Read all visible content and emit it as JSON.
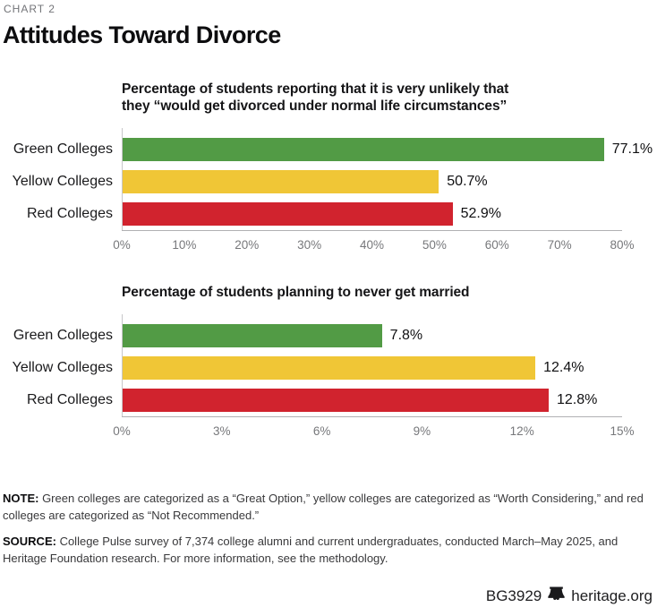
{
  "page": {
    "kicker": "CHART 2",
    "title": "Attitudes Toward Divorce"
  },
  "chart_data": [
    {
      "type": "bar",
      "orientation": "horizontal",
      "title": "Percentage of students reporting that it is very unlikely that\nthey “would get divorced under normal life circumstances”",
      "categories": [
        "Green Colleges",
        "Yellow Colleges",
        "Red Colleges"
      ],
      "values": [
        77.1,
        50.7,
        52.9
      ],
      "value_labels": [
        "77.1%",
        "50.7%",
        "52.9%"
      ],
      "colors": [
        "#529b45",
        "#f0c636",
        "#d1232e"
      ],
      "xlim": [
        0,
        80
      ],
      "ticks": [
        "0%",
        "10%",
        "20%",
        "30%",
        "40%",
        "50%",
        "60%",
        "70%",
        "80%"
      ],
      "grid": false,
      "legend": false
    },
    {
      "type": "bar",
      "orientation": "horizontal",
      "title": "Percentage of students planning to never get married",
      "categories": [
        "Green Colleges",
        "Yellow Colleges",
        "Red Colleges"
      ],
      "values": [
        7.8,
        12.4,
        12.8
      ],
      "value_labels": [
        "7.8%",
        "12.4%",
        "12.8%"
      ],
      "colors": [
        "#529b45",
        "#f0c636",
        "#d1232e"
      ],
      "xlim": [
        0,
        15
      ],
      "ticks": [
        "0%",
        "3%",
        "6%",
        "9%",
        "12%",
        "15%"
      ],
      "grid": false,
      "legend": false
    }
  ],
  "notes": {
    "note_label": "NOTE:",
    "note_text": " Green colleges are categorized as a “Great Option,” yellow colleges are categorized as “Worth Considering,” and red colleges are categorized as “Not Recommended.”",
    "source_label": "SOURCE:",
    "source_text": " College Pulse survey of 7,374 college alumni and current undergraduates, conducted March–May 2025, and Heritage Foundation research. For more information, see the methodology."
  },
  "footer": {
    "doc_id": "BG3929",
    "site": "heritage.org",
    "bell_icon": "heritage-bell-icon"
  }
}
